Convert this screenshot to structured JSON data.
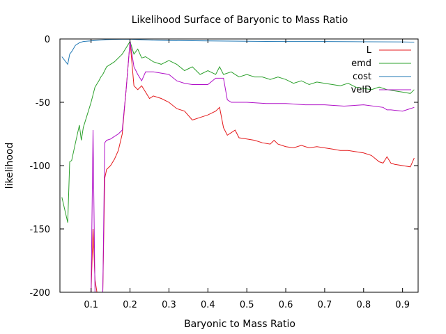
{
  "chart_data": {
    "type": "line",
    "title": "Likelihood Surface of Baryonic to Mass Ratio",
    "xlabel": "Baryonic to Mass Ratio",
    "ylabel": "likelihood",
    "xlim": [
      0.02,
      0.94
    ],
    "ylim": [
      -200,
      0
    ],
    "xticks": [
      0.1,
      0.2,
      0.3,
      0.4,
      0.5,
      0.6,
      0.7,
      0.8,
      0.9
    ],
    "yticks": [
      0,
      -50,
      -100,
      -150,
      -200
    ],
    "xtick_labels": [
      "0.1",
      "0.2",
      "0.3",
      "0.4",
      "0.5",
      "0.6",
      "0.7",
      "0.8",
      "0.9"
    ],
    "ytick_labels": [
      "0",
      "-50",
      "-100",
      "-150",
      "-200"
    ],
    "grid": false,
    "legend_position": "top-right",
    "series": [
      {
        "name": "L",
        "color": "#e41a1c",
        "x": [
          0.1,
          0.105,
          0.11,
          0.115,
          0.12,
          0.125,
          0.13,
          0.135,
          0.14,
          0.15,
          0.16,
          0.17,
          0.18,
          0.19,
          0.2,
          0.21,
          0.22,
          0.23,
          0.24,
          0.25,
          0.26,
          0.28,
          0.3,
          0.32,
          0.34,
          0.36,
          0.38,
          0.4,
          0.42,
          0.43,
          0.44,
          0.45,
          0.46,
          0.47,
          0.48,
          0.5,
          0.52,
          0.54,
          0.56,
          0.57,
          0.58,
          0.6,
          0.62,
          0.64,
          0.66,
          0.68,
          0.7,
          0.72,
          0.74,
          0.76,
          0.78,
          0.8,
          0.82,
          0.84,
          0.85,
          0.86,
          0.87,
          0.88,
          0.9,
          0.92,
          0.93
        ],
        "y": [
          -200,
          -150,
          -190,
          -200,
          -200,
          -200,
          -200,
          -110,
          -103,
          -100,
          -95,
          -88,
          -75,
          -40,
          -2,
          -37,
          -40,
          -37,
          -42,
          -47,
          -45,
          -47,
          -50,
          -55,
          -57,
          -64,
          -62,
          -60,
          -57,
          -54,
          -70,
          -76,
          -74,
          -72,
          -78,
          -79,
          -80,
          -82,
          -83,
          -80,
          -83,
          -85,
          -86,
          -84,
          -86,
          -85,
          -86,
          -87,
          -88,
          -88,
          -89,
          -90,
          -92,
          -97,
          -98,
          -93,
          -98,
          -99,
          -100,
          -101,
          -94
        ]
      },
      {
        "name": "emd",
        "color": "#2ca02c",
        "x": [
          0.025,
          0.04,
          0.045,
          0.05,
          0.06,
          0.07,
          0.075,
          0.08,
          0.09,
          0.1,
          0.11,
          0.12,
          0.125,
          0.13,
          0.14,
          0.16,
          0.18,
          0.2,
          0.21,
          0.22,
          0.23,
          0.24,
          0.26,
          0.28,
          0.3,
          0.32,
          0.34,
          0.36,
          0.38,
          0.4,
          0.42,
          0.43,
          0.44,
          0.46,
          0.48,
          0.5,
          0.52,
          0.54,
          0.56,
          0.58,
          0.6,
          0.62,
          0.64,
          0.66,
          0.68,
          0.7,
          0.72,
          0.74,
          0.76,
          0.78,
          0.8,
          0.82,
          0.84,
          0.86,
          0.88,
          0.9,
          0.92,
          0.93
        ],
        "y": [
          -125,
          -145,
          -97,
          -96,
          -82,
          -68,
          -80,
          -70,
          -60,
          -50,
          -38,
          -33,
          -30,
          -28,
          -22,
          -18,
          -12,
          -2,
          -12,
          -8,
          -15,
          -14,
          -18,
          -20,
          -17,
          -20,
          -25,
          -22,
          -28,
          -25,
          -28,
          -22,
          -28,
          -26,
          -30,
          -28,
          -30,
          -30,
          -32,
          -30,
          -32,
          -35,
          -33,
          -36,
          -34,
          -35,
          -36,
          -37,
          -35,
          -38,
          -39,
          -40,
          -38,
          -40,
          -41,
          -42,
          -43,
          -40
        ]
      },
      {
        "name": "cost",
        "color": "#1f77b4",
        "x": [
          0.025,
          0.04,
          0.045,
          0.05,
          0.06,
          0.07,
          0.08,
          0.1,
          0.12,
          0.14,
          0.16,
          0.18,
          0.2,
          0.22,
          0.26,
          0.3,
          0.4,
          0.5,
          0.6,
          0.7,
          0.8,
          0.9,
          0.93
        ],
        "y": [
          -14,
          -20,
          -12,
          -10,
          -5,
          -3,
          -2,
          -1.5,
          -1,
          -0.5,
          -0.3,
          -0.2,
          -0.1,
          -0.5,
          -1,
          -1.2,
          -1.5,
          -1.8,
          -2,
          -2,
          -2.2,
          -2.3,
          -2.5
        ]
      },
      {
        "name": "velD",
        "color": "#b010c8",
        "x": [
          0.1,
          0.105,
          0.11,
          0.12,
          0.13,
          0.135,
          0.14,
          0.15,
          0.16,
          0.17,
          0.18,
          0.19,
          0.2,
          0.21,
          0.22,
          0.23,
          0.24,
          0.26,
          0.28,
          0.3,
          0.32,
          0.34,
          0.36,
          0.38,
          0.4,
          0.42,
          0.44,
          0.45,
          0.46,
          0.48,
          0.5,
          0.55,
          0.6,
          0.65,
          0.7,
          0.75,
          0.8,
          0.85,
          0.86,
          0.87,
          0.9,
          0.92,
          0.93
        ],
        "y": [
          -200,
          -72,
          -200,
          -200,
          -200,
          -82,
          -80,
          -79,
          -77,
          -75,
          -72,
          -40,
          -2,
          -22,
          -28,
          -33,
          -26,
          -26,
          -27,
          -28,
          -33,
          -35,
          -36,
          -36,
          -36,
          -31,
          -31,
          -48,
          -50,
          -50,
          -50,
          -51,
          -51,
          -52,
          -52,
          -53,
          -52,
          -54,
          -56,
          -56,
          -57,
          -55,
          -54
        ]
      }
    ]
  }
}
